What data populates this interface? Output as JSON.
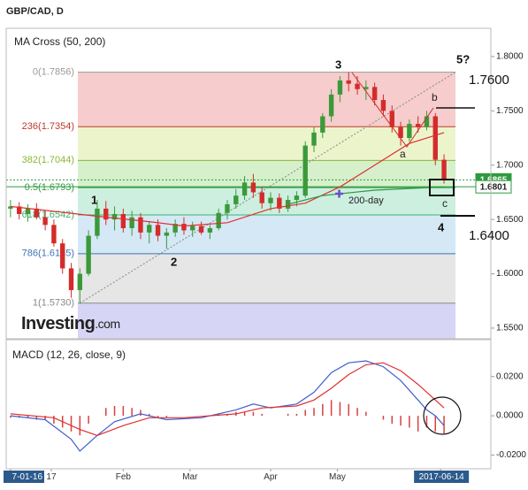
{
  "chart_data": {
    "type": "candlestick",
    "title": "GBP/CAD, D",
    "indicator_label": "MA Cross (50, 200)",
    "up_color": "#3a9a3a",
    "down_color": "#d42b2b",
    "open": [
      1.66,
      1.662,
      1.655,
      1.66,
      1.652,
      1.645,
      1.628,
      1.605,
      1.585,
      1.6,
      1.635,
      1.66,
      1.65,
      1.655,
      1.642,
      1.652,
      1.638,
      1.645,
      1.635,
      1.638,
      1.646,
      1.64,
      1.644,
      1.638,
      1.642,
      1.656,
      1.664,
      1.672,
      1.684,
      1.675,
      1.665,
      1.67,
      1.66,
      1.668,
      1.672,
      1.718,
      1.73,
      1.745,
      1.765,
      1.778,
      1.775,
      1.77,
      1.772,
      1.76,
      1.75,
      1.735,
      1.725,
      1.738,
      1.735,
      1.745,
      1.705
    ],
    "high": [
      1.668,
      1.666,
      1.664,
      1.665,
      1.658,
      1.65,
      1.632,
      1.61,
      1.605,
      1.64,
      1.668,
      1.667,
      1.662,
      1.66,
      1.658,
      1.656,
      1.648,
      1.65,
      1.642,
      1.65,
      1.652,
      1.648,
      1.648,
      1.645,
      1.66,
      1.668,
      1.678,
      1.69,
      1.692,
      1.68,
      1.675,
      1.674,
      1.672,
      1.676,
      1.722,
      1.735,
      1.748,
      1.77,
      1.782,
      1.7856,
      1.782,
      1.778,
      1.776,
      1.765,
      1.755,
      1.74,
      1.742,
      1.745,
      1.75,
      1.748,
      1.71
    ],
    "low": [
      1.652,
      1.65,
      1.648,
      1.65,
      1.64,
      1.625,
      1.6,
      1.578,
      1.573,
      1.598,
      1.632,
      1.645,
      1.64,
      1.638,
      1.635,
      1.632,
      1.628,
      1.63,
      1.623,
      1.634,
      1.636,
      1.634,
      1.636,
      1.632,
      1.64,
      1.65,
      1.66,
      1.668,
      1.67,
      1.66,
      1.658,
      1.656,
      1.657,
      1.662,
      1.67,
      1.712,
      1.725,
      1.74,
      1.758,
      1.768,
      1.765,
      1.76,
      1.755,
      1.745,
      1.73,
      1.718,
      1.722,
      1.73,
      1.732,
      1.7,
      1.683
    ],
    "close": [
      1.662,
      1.655,
      1.66,
      1.652,
      1.645,
      1.628,
      1.605,
      1.585,
      1.6,
      1.635,
      1.66,
      1.65,
      1.655,
      1.642,
      1.652,
      1.638,
      1.645,
      1.635,
      1.638,
      1.646,
      1.64,
      1.644,
      1.638,
      1.642,
      1.656,
      1.664,
      1.672,
      1.684,
      1.675,
      1.665,
      1.67,
      1.66,
      1.668,
      1.672,
      1.718,
      1.73,
      1.745,
      1.765,
      1.778,
      1.775,
      1.77,
      1.772,
      1.76,
      1.75,
      1.735,
      1.725,
      1.738,
      1.735,
      1.745,
      1.705,
      1.6865
    ],
    "ma50": {
      "color": "#e03030",
      "x": [
        0,
        10,
        16,
        20,
        25,
        30,
        34,
        38,
        42,
        46,
        50
      ],
      "values": [
        1.662,
        1.653,
        1.648,
        1.644,
        1.647,
        1.66,
        1.665,
        1.68,
        1.7,
        1.72,
        1.73
      ]
    },
    "ma200": {
      "name": "200-day",
      "color": "#2e9a3e",
      "x": [
        32,
        36,
        42,
        50
      ],
      "values": [
        1.664,
        1.672,
        1.677,
        1.68
      ]
    },
    "current_price": 1.6865,
    "ma200_value": 1.6801,
    "fib_levels": [
      {
        "label": "0(1.7856)",
        "value": 1.7856,
        "color": "#9a9a9a",
        "zone_color": "#f6cccc"
      },
      {
        "label": "236(1.7354)",
        "value": 1.7354,
        "color": "#c0392b",
        "zone_color": "#ecf4cc"
      },
      {
        "label": "382(1.7044)",
        "value": 1.7044,
        "color": "#8ab832",
        "zone_color": "#d6f0cc"
      },
      {
        "label": "0.5(1.6793)",
        "value": 1.6793,
        "color": "#2e9a3e",
        "zone_color": "#ccefe0"
      },
      {
        "label": "618(1.6542)",
        "value": 1.6542,
        "color": "#3cb371",
        "zone_color": "#d5e8f5"
      },
      {
        "label": "786(1.6185)",
        "value": 1.6185,
        "color": "#3f73b5",
        "zone_color": "#e6e6e6"
      },
      {
        "label": "1(1.5730)",
        "value": 1.573,
        "color": "#888888",
        "zone_color": "#d7d5f5"
      }
    ],
    "annotations": {
      "wave3": "3",
      "wave5": "5?",
      "target_high": "1.7600",
      "b": "b",
      "a": "a",
      "wave1": "1",
      "wave2": "2",
      "c": "c",
      "wave4": "4",
      "target_low": "1.6400"
    },
    "logo": {
      "brand": "Investing",
      "suffix": ".com"
    },
    "xlim": [
      -0.5,
      55.4
    ],
    "ylim": [
      1.5402,
      1.826
    ],
    "yticks": [
      {
        "value": 1.8,
        "label": "1.8000"
      },
      {
        "value": 1.75,
        "label": "1.7500"
      },
      {
        "value": 1.7,
        "label": "1.7000"
      },
      {
        "value": 1.65,
        "label": "1.6500"
      },
      {
        "value": 1.6,
        "label": "1.6000"
      },
      {
        "value": 1.55,
        "label": "1.5500"
      }
    ],
    "xticks": [
      {
        "value": 0,
        "label": "7-01-16"
      },
      {
        "value": 4.7,
        "label": "17"
      },
      {
        "value": 13,
        "label": "Feb"
      },
      {
        "value": 20.7,
        "label": "Mar"
      },
      {
        "value": 30,
        "label": "Apr"
      },
      {
        "value": 37.7,
        "label": "May"
      },
      {
        "value": 49.6,
        "label": "2017-06-14"
      }
    ],
    "macd": {
      "label": "MACD (12, 26, close, 9)",
      "ylim": [
        -0.027,
        0.037
      ],
      "yticks": [
        {
          "value": 0.02,
          "label": "0.0200"
        },
        {
          "value": 0,
          "label": "0.0000"
        },
        {
          "value": -0.02,
          "label": "-0.0200"
        }
      ],
      "macd_line": {
        "color": "#3f5fd0",
        "x": [
          0,
          4,
          7,
          8,
          10,
          12,
          15,
          18,
          22,
          26,
          28,
          30,
          33,
          35,
          37,
          39,
          41,
          43,
          45,
          47,
          48,
          49,
          50
        ],
        "values": [
          0.0,
          -0.002,
          -0.012,
          -0.018,
          -0.01,
          -0.003,
          0.001,
          -0.002,
          -0.001,
          0.003,
          0.006,
          0.004,
          0.006,
          0.012,
          0.022,
          0.027,
          0.028,
          0.025,
          0.018,
          0.008,
          0.003,
          0.0,
          -0.005
        ]
      },
      "signal_line": {
        "color": "#e03030",
        "x": [
          0,
          5,
          8,
          10,
          13,
          16,
          20,
          26,
          29,
          33,
          35,
          37,
          39,
          41,
          43,
          45,
          47,
          49,
          50
        ],
        "values": [
          0.001,
          -0.001,
          -0.007,
          -0.01,
          -0.005,
          -0.001,
          -0.001,
          0.001,
          0.004,
          0.005,
          0.008,
          0.014,
          0.021,
          0.026,
          0.027,
          0.023,
          0.016,
          0.008,
          0.004
        ]
      },
      "histogram": {
        "color": "#d84040",
        "values": [
          -0.001,
          -0.001,
          -0.001,
          -0.002,
          -0.002,
          -0.004,
          -0.006,
          -0.008,
          -0.01,
          -0.004,
          0.0,
          0.004,
          0.005,
          0.005,
          0.004,
          0.003,
          0.001,
          -0.001,
          -0.001,
          0.0,
          0.0,
          0.0,
          0.0,
          0.0,
          0.001,
          0.001,
          0.002,
          0.002,
          0.002,
          0.001,
          0.0,
          0.0,
          0.001,
          0.001,
          0.003,
          0.004,
          0.006,
          0.008,
          0.007,
          0.006,
          0.004,
          0.002,
          0.0,
          -0.002,
          -0.004,
          -0.005,
          -0.006,
          -0.008,
          -0.006,
          -0.008,
          -0.009
        ]
      }
    }
  }
}
